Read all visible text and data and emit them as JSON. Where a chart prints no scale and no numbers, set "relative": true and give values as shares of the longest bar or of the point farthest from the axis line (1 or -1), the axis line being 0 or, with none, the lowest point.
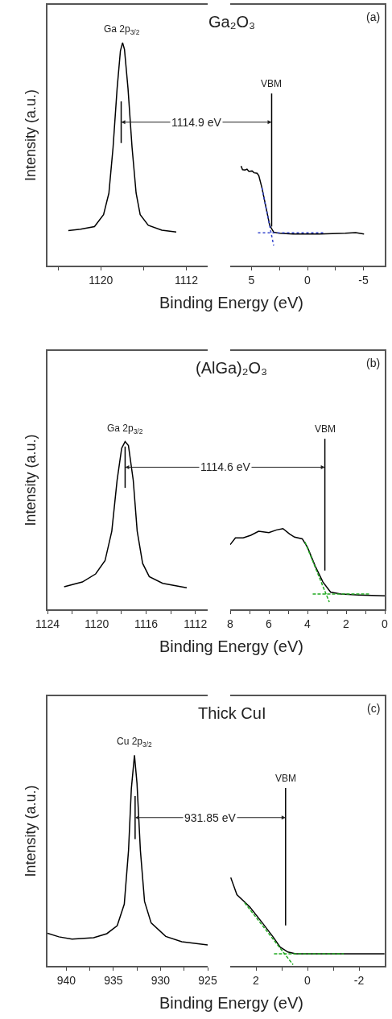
{
  "chart_data": [
    {
      "type": "line",
      "title": "Ga₂O₃",
      "xlabel": "Binding Energy (eV)",
      "ylabel": "Intensity (a.u.)",
      "relative": true,
      "annotations": [
        {
          "text": "Ga 2p$_{3/2}$",
          "x": 1118.0,
          "y": 1.0
        }
      ],
      "xlim": [
        1125,
        1110
      ],
      "xticks": [
        {
          "value": 1124,
          "label": null
        },
        1120,
        {
          "value": 1116,
          "label": null
        },
        1112
      ],
      "ref_lines": [
        {
          "axis": "x",
          "value": 1118.1,
          "color": "#000000"
        }
      ],
      "series": [
        {
          "color": "#000000",
          "x": [
            1123.05,
            1121.9,
            1120.6,
            1119.75,
            1119.25,
            1118.86,
            1118.48,
            1118.17,
            1117.97,
            1117.79,
            1117.46,
            1117.08,
            1116.7,
            1116.32,
            1115.56,
            1114.29,
            1112.94
          ],
          "values": [
            0.157,
            0.163,
            0.175,
            0.229,
            0.325,
            0.53,
            0.795,
            0.964,
            1.0,
            0.97,
            0.795,
            0.53,
            0.325,
            0.229,
            0.181,
            0.159,
            0.151
          ]
        }
      ]
    },
    {
      "type": "line",
      "relative": true,
      "annotations": [
        "(a)",
        "1114.9 eV"
      ],
      "xlim": [
        6.9,
        -6.9
      ],
      "xticks": [
        5,
        {
          "value": 2.5,
          "label": null
        },
        0,
        {
          "value": -2.5,
          "label": null
        },
        -5
      ],
      "ref_lines": [
        {
          "axis": "x",
          "value": 3.2,
          "label": "VBM",
          "color": "#000000"
        }
      ],
      "series": [
        {
          "color": "#000000",
          "x": [
            5.93,
            5.8,
            5.58,
            5.4,
            5.23,
            4.95,
            4.77,
            4.5,
            4.35,
            4.07,
            3.72,
            3.37,
            3.02,
            2.56,
            1.28,
            -1.05,
            -3.37,
            -4.3,
            -5.05
          ],
          "values": [
            1.0,
            0.964,
            0.96,
            0.969,
            0.946,
            0.951,
            0.933,
            0.928,
            0.906,
            0.783,
            0.594,
            0.404,
            0.336,
            0.325,
            0.318,
            0.318,
            0.325,
            0.332,
            0.318
          ]
        },
        {
          "color": "#3344cc",
          "line_style": "dotted",
          "x": [
            4.42,
            -1.5
          ],
          "values": [
            0.33,
            0.33
          ]
        },
        {
          "color": "#3344cc",
          "line_style": "dotted",
          "x": [
            4.07,
            3.02
          ],
          "values": [
            0.783,
            0.202
          ]
        }
      ]
    },
    {
      "type": "line",
      "title": "(AlGa)₂O₃",
      "xlabel": "Binding Energy (eV)",
      "ylabel": "Intensity (a.u.)",
      "relative": true,
      "annotations": [
        {
          "text": "Ga 2p$_{3/2}$",
          "x": 1117.7,
          "y": 1.0
        }
      ],
      "xlim": [
        1124,
        1111
      ],
      "xticks": [
        1124,
        {
          "value": 1122,
          "label": null
        },
        1120,
        {
          "value": 1118,
          "label": null
        },
        1116,
        {
          "value": 1114,
          "label": null
        },
        1112
      ],
      "ref_lines": [
        {
          "axis": "x",
          "value": 1117.7,
          "color": "#000000"
        }
      ],
      "series": [
        {
          "color": "#000000",
          "x": [
            1122.65,
            1121.17,
            1120.09,
            1119.33,
            1118.78,
            1118.35,
            1117.98,
            1117.7,
            1117.43,
            1117.04,
            1116.72,
            1116.28,
            1115.74,
            1114.65,
            1112.7
          ],
          "values": [
            0.134,
            0.163,
            0.211,
            0.29,
            0.466,
            0.769,
            0.96,
            1.0,
            0.976,
            0.769,
            0.466,
            0.274,
            0.195,
            0.155,
            0.128
          ]
        }
      ]
    },
    {
      "type": "line",
      "relative": true,
      "annotations": [
        "(b)",
        "1114.6 eV"
      ],
      "xlim": [
        8,
        0
      ],
      "xticks": [
        8,
        {
          "value": 7,
          "label": null
        },
        6,
        {
          "value": 5,
          "label": null
        },
        4,
        {
          "value": 3,
          "label": null
        },
        2,
        {
          "value": 1,
          "label": null
        },
        0
      ],
      "ref_lines": [
        {
          "axis": "x",
          "value": 3.1,
          "label": "VBM",
          "color": "#000000"
        }
      ],
      "series": [
        {
          "color": "#000000",
          "x": [
            8.0,
            7.73,
            7.33,
            6.93,
            6.53,
            6.0,
            5.6,
            5.27,
            4.93,
            4.67,
            4.27,
            4.0,
            3.6,
            3.2,
            2.8,
            2.27,
            1.33,
            0.0
          ],
          "values": [
            0.801,
            0.884,
            0.884,
            0.917,
            0.967,
            0.95,
            0.983,
            1.0,
            0.934,
            0.894,
            0.873,
            0.768,
            0.535,
            0.338,
            0.212,
            0.189,
            0.178,
            0.166
          ]
        },
        {
          "color": "#22aa22",
          "line_style": "dashed",
          "x": [
            3.73,
            0.8
          ],
          "values": [
            0.189,
            0.189
          ]
        },
        {
          "color": "#22aa22",
          "line_style": "dashed",
          "x": [
            4.13,
            2.87
          ],
          "values": [
            0.834,
            0.089
          ]
        }
      ]
    },
    {
      "type": "line",
      "title": "Thick CuI",
      "xlabel": "Binding Energy (eV)",
      "ylabel": "Intensity (a.u.)",
      "relative": true,
      "annotations": [
        {
          "text": "Cu 2p$_{3/2}$",
          "x": 932.77,
          "y": 1.0
        }
      ],
      "xlim": [
        942,
        925
      ],
      "xticks": [
        940,
        {
          "value": 937.5,
          "label": null
        },
        935,
        {
          "value": 932.5,
          "label": null
        },
        930,
        {
          "value": 927.5,
          "label": null
        },
        925
      ],
      "ref_lines": [
        {
          "axis": "x",
          "value": 932.7,
          "color": "#000000"
        }
      ],
      "series": [
        {
          "color": "#000000",
          "x": [
            942.0,
            940.8,
            939.4,
            937.1,
            935.7,
            934.6,
            933.85,
            933.4,
            933.1,
            932.77,
            932.5,
            932.14,
            931.7,
            931.0,
            929.45,
            927.75,
            925.0
          ],
          "values": [
            0.155,
            0.138,
            0.127,
            0.134,
            0.153,
            0.191,
            0.293,
            0.548,
            0.841,
            1.0,
            0.866,
            0.548,
            0.306,
            0.204,
            0.14,
            0.115,
            0.099
          ]
        }
      ]
    },
    {
      "type": "line",
      "relative": true,
      "annotations": [
        "(c)",
        "931.85 eV"
      ],
      "xlim": [
        3,
        -3
      ],
      "xticks": [
        2,
        {
          "value": 1,
          "label": null
        },
        0,
        {
          "value": -1,
          "label": null
        },
        -2
      ],
      "ref_lines": [
        {
          "axis": "x",
          "value": 0.85,
          "label": "VBM",
          "color": "#000000"
        }
      ],
      "series": [
        {
          "color": "#000000",
          "x": [
            2.98,
            2.74,
            2.24,
            1.75,
            1.35,
            1.06,
            0.76,
            0.46,
            -0.52,
            -2.99
          ],
          "values": [
            1.0,
            0.805,
            0.667,
            0.486,
            0.333,
            0.212,
            0.157,
            0.136,
            0.136,
            0.136
          ]
        },
        {
          "color": "#22aa22",
          "line_style": "dashed",
          "x": [
            1.3,
            -1.41
          ],
          "values": [
            0.136,
            0.136
          ]
        },
        {
          "color": "#22aa22",
          "line_style": "dashed",
          "x": [
            2.44,
            0.56
          ],
          "values": [
            0.714,
            0.014
          ]
        }
      ]
    }
  ]
}
